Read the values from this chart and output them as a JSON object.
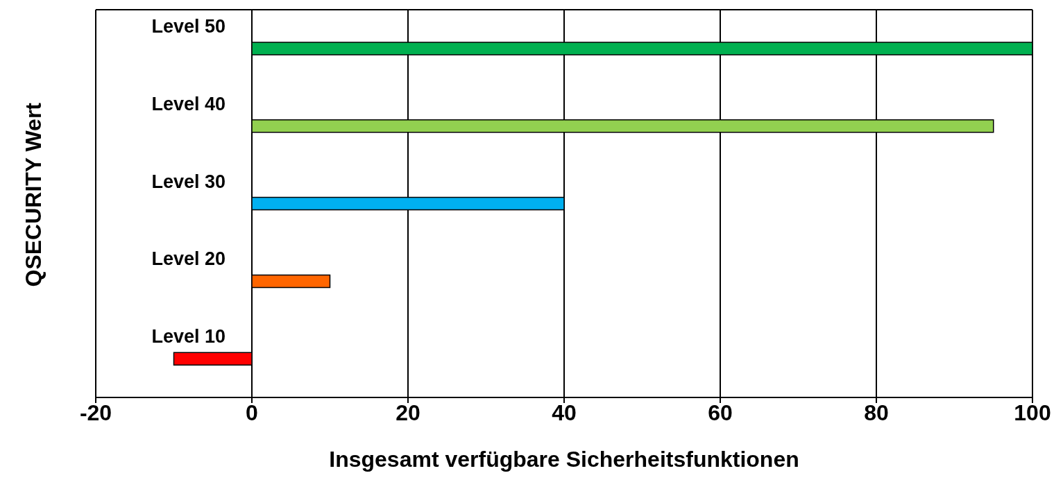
{
  "chart_data": {
    "type": "bar",
    "orientation": "horizontal",
    "xlabel": "Insgesamt verfügbare Sicherheitsfunktionen",
    "ylabel": "QSECURITY Wert",
    "categories": [
      "Level 50",
      "Level 40",
      "Level 30",
      "Level 20",
      "Level 10"
    ],
    "values": [
      100,
      95,
      40,
      10,
      -10
    ],
    "colors": [
      "#00b050",
      "#92d050",
      "#00b0f0",
      "#ff6600",
      "#ff0000"
    ],
    "xlim": [
      -20,
      100
    ],
    "xticks": [
      -20,
      0,
      20,
      40,
      60,
      80,
      100
    ],
    "grid": "x",
    "legend": false
  }
}
